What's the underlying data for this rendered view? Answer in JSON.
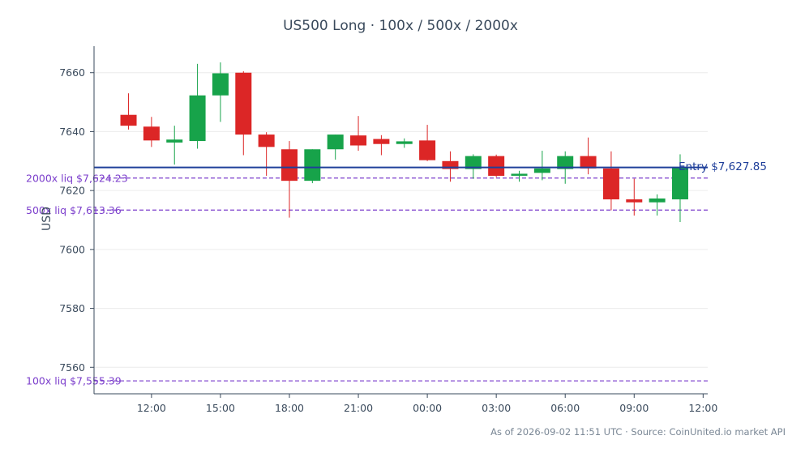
{
  "chart_data": {
    "type": "candlestick",
    "title": "US500 Long · 100x / 500x / 2000x",
    "ylabel": "USD",
    "xlabel": "",
    "ylim": [
      7551,
      7669
    ],
    "yticks": [
      7560,
      7580,
      7600,
      7620,
      7640,
      7660
    ],
    "xlim": [
      9.5,
      36.2
    ],
    "xticks": [
      {
        "x": 12,
        "label": "12:00"
      },
      {
        "x": 15,
        "label": "15:00"
      },
      {
        "x": 18,
        "label": "18:00"
      },
      {
        "x": 21,
        "label": "21:00"
      },
      {
        "x": 24,
        "label": "00:00"
      },
      {
        "x": 27,
        "label": "03:00"
      },
      {
        "x": 30,
        "label": "06:00"
      },
      {
        "x": 33,
        "label": "09:00"
      },
      {
        "x": 36,
        "label": "12:00"
      }
    ],
    "grid": true,
    "colors": {
      "up": "#17a34a",
      "down": "#dc2626",
      "entry": "#1f3f9a",
      "liquidation": "#7c3fcc",
      "axis": "#3a4a5c",
      "grid": "#ececec"
    },
    "candles": [
      {
        "x": 11,
        "open": 7645.7,
        "high": 7653.0,
        "low": 7640.7,
        "close": 7642.0
      },
      {
        "x": 12,
        "open": 7641.7,
        "high": 7645.0,
        "low": 7634.8,
        "close": 7637.0
      },
      {
        "x": 13,
        "open": 7636.3,
        "high": 7642.0,
        "low": 7628.8,
        "close": 7637.3
      },
      {
        "x": 14,
        "open": 7636.8,
        "high": 7663.0,
        "low": 7634.2,
        "close": 7652.3
      },
      {
        "x": 15,
        "open": 7652.3,
        "high": 7663.5,
        "low": 7643.3,
        "close": 7659.8
      },
      {
        "x": 16,
        "open": 7660.0,
        "high": 7660.5,
        "low": 7632.0,
        "close": 7639.0
      },
      {
        "x": 17,
        "open": 7639.0,
        "high": 7639.8,
        "low": 7625.0,
        "close": 7634.8
      },
      {
        "x": 18,
        "open": 7634.0,
        "high": 7636.8,
        "low": 7610.8,
        "close": 7623.3
      },
      {
        "x": 19,
        "open": 7623.3,
        "high": 7634.0,
        "low": 7622.5,
        "close": 7634.0
      },
      {
        "x": 20,
        "open": 7634.0,
        "high": 7639.0,
        "low": 7630.5,
        "close": 7639.0
      },
      {
        "x": 21,
        "open": 7638.7,
        "high": 7645.3,
        "low": 7633.5,
        "close": 7635.3
      },
      {
        "x": 22,
        "open": 7637.5,
        "high": 7638.8,
        "low": 7632.0,
        "close": 7635.8
      },
      {
        "x": 23,
        "open": 7635.8,
        "high": 7637.7,
        "low": 7634.5,
        "close": 7636.7
      },
      {
        "x": 24,
        "open": 7637.0,
        "high": 7642.3,
        "low": 7630.0,
        "close": 7630.3
      },
      {
        "x": 25,
        "open": 7630.0,
        "high": 7633.3,
        "low": 7623.0,
        "close": 7627.3
      },
      {
        "x": 26,
        "open": 7627.3,
        "high": 7632.3,
        "low": 7624.0,
        "close": 7631.7
      },
      {
        "x": 27,
        "open": 7631.7,
        "high": 7632.2,
        "low": 7624.5,
        "close": 7625.0
      },
      {
        "x": 28,
        "open": 7625.3,
        "high": 7626.7,
        "low": 7623.0,
        "close": 7625.7
      },
      {
        "x": 29,
        "open": 7626.0,
        "high": 7633.5,
        "low": 7623.5,
        "close": 7627.5
      },
      {
        "x": 30,
        "open": 7627.3,
        "high": 7633.3,
        "low": 7622.3,
        "close": 7631.7
      },
      {
        "x": 31,
        "open": 7631.7,
        "high": 7638.0,
        "low": 7625.5,
        "close": 7627.5
      },
      {
        "x": 32,
        "open": 7627.5,
        "high": 7633.3,
        "low": 7613.3,
        "close": 7617.0
      },
      {
        "x": 33,
        "open": 7617.0,
        "high": 7624.0,
        "low": 7611.5,
        "close": 7616.0
      },
      {
        "x": 34,
        "open": 7616.0,
        "high": 7618.7,
        "low": 7611.5,
        "close": 7617.3
      },
      {
        "x": 35,
        "open": 7617.0,
        "high": 7632.3,
        "low": 7609.3,
        "close": 7628.0
      }
    ],
    "entry": {
      "value": 7627.85,
      "label": "Entry $7,627.85"
    },
    "liquidations": [
      {
        "value": 7624.23,
        "label": "2000x liq $7,624.23"
      },
      {
        "value": 7613.36,
        "label": "500x liq $7,613.36"
      },
      {
        "value": 7555.39,
        "label": "100x liq $7,555.39"
      }
    ],
    "footer": "As of 2026-09-02 11:51 UTC · Source: CoinUnited.io market API"
  }
}
